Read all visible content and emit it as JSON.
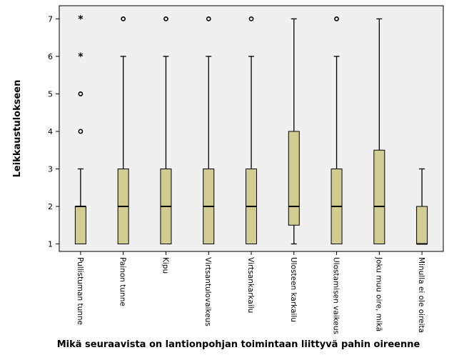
{
  "chart_data": {
    "type": "boxplot",
    "ylabel": "Leikkaustulokseen",
    "xlabel": "Mikä seuraavista on lantionpohjan toimintaan liittyvä pahin oireenne",
    "ylim": [
      0.8,
      7.35
    ],
    "yticks": [
      1,
      2,
      3,
      4,
      5,
      6,
      7
    ],
    "grid": false,
    "box_color": "#d2cc92",
    "plot_background": "#f0f0f0",
    "categories": [
      "Pullistuman tunne",
      "Painon tunne",
      "Kipu",
      "Virtsantulovaikeus",
      "Virtsankarkailu",
      "Ulosteen karkailu",
      "Ulostamisen vaikeus",
      "Joku muu oire, mikä",
      "Minulla ei ole oireita"
    ],
    "boxes": [
      {
        "whisker_low": 1,
        "q1": 1,
        "median": 2,
        "q3": 2,
        "whisker_high": 3,
        "outliers": [
          4,
          5
        ],
        "extremes": [
          6,
          7
        ]
      },
      {
        "whisker_low": 1,
        "q1": 1,
        "median": 2,
        "q3": 3,
        "whisker_high": 6,
        "outliers": [
          7
        ],
        "extremes": []
      },
      {
        "whisker_low": 1,
        "q1": 1,
        "median": 2,
        "q3": 3,
        "whisker_high": 6,
        "outliers": [
          7
        ],
        "extremes": []
      },
      {
        "whisker_low": 1,
        "q1": 1,
        "median": 2,
        "q3": 3,
        "whisker_high": 6,
        "outliers": [
          7
        ],
        "extremes": []
      },
      {
        "whisker_low": 1,
        "q1": 1,
        "median": 2,
        "q3": 3,
        "whisker_high": 6,
        "outliers": [
          7
        ],
        "extremes": []
      },
      {
        "whisker_low": 1,
        "q1": 1.5,
        "median": 2,
        "q3": 4,
        "whisker_high": 7,
        "outliers": [],
        "extremes": []
      },
      {
        "whisker_low": 1,
        "q1": 1,
        "median": 2,
        "q3": 3,
        "whisker_high": 6,
        "outliers": [
          7
        ],
        "extremes": []
      },
      {
        "whisker_low": 1,
        "q1": 1,
        "median": 2,
        "q3": 3.5,
        "whisker_high": 7,
        "outliers": [],
        "extremes": []
      },
      {
        "whisker_low": 1,
        "q1": 1,
        "median": 1,
        "q3": 2,
        "whisker_high": 3,
        "outliers": [],
        "extremes": []
      }
    ]
  }
}
